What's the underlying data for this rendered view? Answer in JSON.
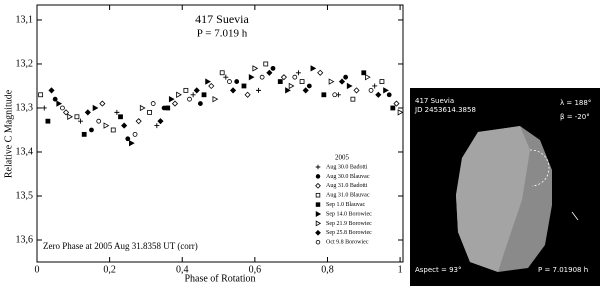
{
  "chart_data": {
    "type": "scatter",
    "title": "417 Suevia",
    "subtitle": "P = 7.019 h",
    "annotation": "Zero Phase at 2005 Aug 31.8358 UT (corr)",
    "x_label": "Phase of Rotation",
    "y_label": "Relative C Magnitude",
    "xlim": [
      0,
      1.008
    ],
    "ylim": [
      13.066,
      13.65
    ],
    "y_inverted": true,
    "xticks": [
      0,
      {
        "value": 0.2,
        "label": "0,2"
      },
      {
        "value": 0.4,
        "label": "0,4"
      },
      {
        "value": 0.6,
        "label": "0,6"
      },
      {
        "value": 0.8,
        "label": "0,8"
      },
      1
    ],
    "yticks": [
      {
        "value": 13.1,
        "label": "13,1"
      },
      {
        "value": 13.2,
        "label": "13,2"
      },
      {
        "value": 13.3,
        "label": "13,3"
      },
      {
        "value": 13.4,
        "label": "13,4"
      },
      {
        "value": 13.5,
        "label": "13,5"
      },
      {
        "value": 13.6,
        "label": "13,6"
      }
    ],
    "legend_title": "2005",
    "legend_position": "lower-right",
    "series": [
      {
        "name": "Aug 30.0 Badotti",
        "marker": "plus",
        "color": "#000",
        "x": [
          0.02,
          0.12,
          0.22,
          0.33,
          0.43,
          0.52,
          0.61,
          0.72,
          0.83,
          0.93
        ],
        "values": [
          13.3,
          13.33,
          13.31,
          13.34,
          13.27,
          13.23,
          13.26,
          13.22,
          13.27,
          13.25
        ]
      },
      {
        "name": "Aug 30.0 Blauvac",
        "marker": "circle-filled",
        "color": "#000",
        "x": [
          0.05,
          0.15,
          0.25,
          0.35,
          0.45,
          0.55,
          0.65,
          0.75,
          0.85,
          0.97
        ],
        "values": [
          13.28,
          13.35,
          13.37,
          13.3,
          13.29,
          13.24,
          13.21,
          13.25,
          13.23,
          13.27
        ]
      },
      {
        "name": "Aug 31.0 Badotti",
        "marker": "diamond-open",
        "color": "#000",
        "x": [
          0.08,
          0.18,
          0.28,
          0.38,
          0.48,
          0.58,
          0.68,
          0.78,
          0.88,
          0.99
        ],
        "values": [
          13.31,
          13.29,
          13.33,
          13.29,
          13.25,
          13.27,
          13.23,
          13.22,
          13.26,
          13.29
        ]
      },
      {
        "name": "Aug 31.0 Blauvac",
        "marker": "square-open",
        "color": "#000",
        "x": [
          0.01,
          0.11,
          0.21,
          0.31,
          0.41,
          0.51,
          0.63,
          0.73,
          0.87,
          0.95
        ],
        "values": [
          13.27,
          13.32,
          13.35,
          13.31,
          13.26,
          13.22,
          13.2,
          13.24,
          13.28,
          13.24
        ]
      },
      {
        "name": "Sep 1.0 Blauvac",
        "marker": "square-filled",
        "color": "#000",
        "x": [
          0.03,
          0.13,
          0.23,
          0.36,
          0.46,
          0.57,
          0.67,
          0.79,
          0.9,
          0.98
        ],
        "values": [
          13.33,
          13.36,
          13.32,
          13.3,
          13.27,
          13.25,
          13.24,
          13.27,
          13.22,
          13.3
        ]
      },
      {
        "name": "Sep 14.0 Borowiec",
        "marker": "triangle-filled",
        "color": "#000",
        "x": [
          0.06,
          0.16,
          0.26,
          0.37,
          0.47,
          0.59,
          0.69,
          0.76,
          0.86,
          0.96
        ],
        "values": [
          13.29,
          13.3,
          13.38,
          13.28,
          13.24,
          13.23,
          13.26,
          13.21,
          13.25,
          13.26
        ]
      },
      {
        "name": "Sep 21.9 Borowiec",
        "marker": "triangle-open",
        "color": "#000",
        "x": [
          0.09,
          0.19,
          0.29,
          0.39,
          0.49,
          0.6,
          0.7,
          0.81,
          0.91,
          1.0
        ],
        "values": [
          13.32,
          13.34,
          13.3,
          13.27,
          13.28,
          13.21,
          13.25,
          13.24,
          13.23,
          13.31
        ]
      },
      {
        "name": "Sep 25.8 Borowiec",
        "marker": "diamond-filled",
        "color": "#000",
        "x": [
          0.04,
          0.14,
          0.24,
          0.34,
          0.44,
          0.54,
          0.64,
          0.74,
          0.84,
          0.94
        ],
        "values": [
          13.26,
          13.31,
          13.34,
          13.33,
          13.26,
          13.26,
          13.22,
          13.26,
          13.24,
          13.27
        ]
      },
      {
        "name": "Oct 9.8 Borowiec",
        "marker": "circle-open",
        "color": "#000",
        "x": [
          0.07,
          0.17,
          0.27,
          0.32,
          0.42,
          0.53,
          0.62,
          0.71,
          0.82,
          0.92
        ],
        "values": [
          13.3,
          13.33,
          13.36,
          13.29,
          13.28,
          13.24,
          13.23,
          13.23,
          13.27,
          13.26
        ]
      }
    ]
  },
  "shape_panel": {
    "title": "417 Suevia",
    "date": "JD 2453614.3858",
    "lambda": "λ = 188°",
    "beta": "β = -20°",
    "aspect": "Aspect = 93°",
    "period": "P = 7.01908 h"
  }
}
